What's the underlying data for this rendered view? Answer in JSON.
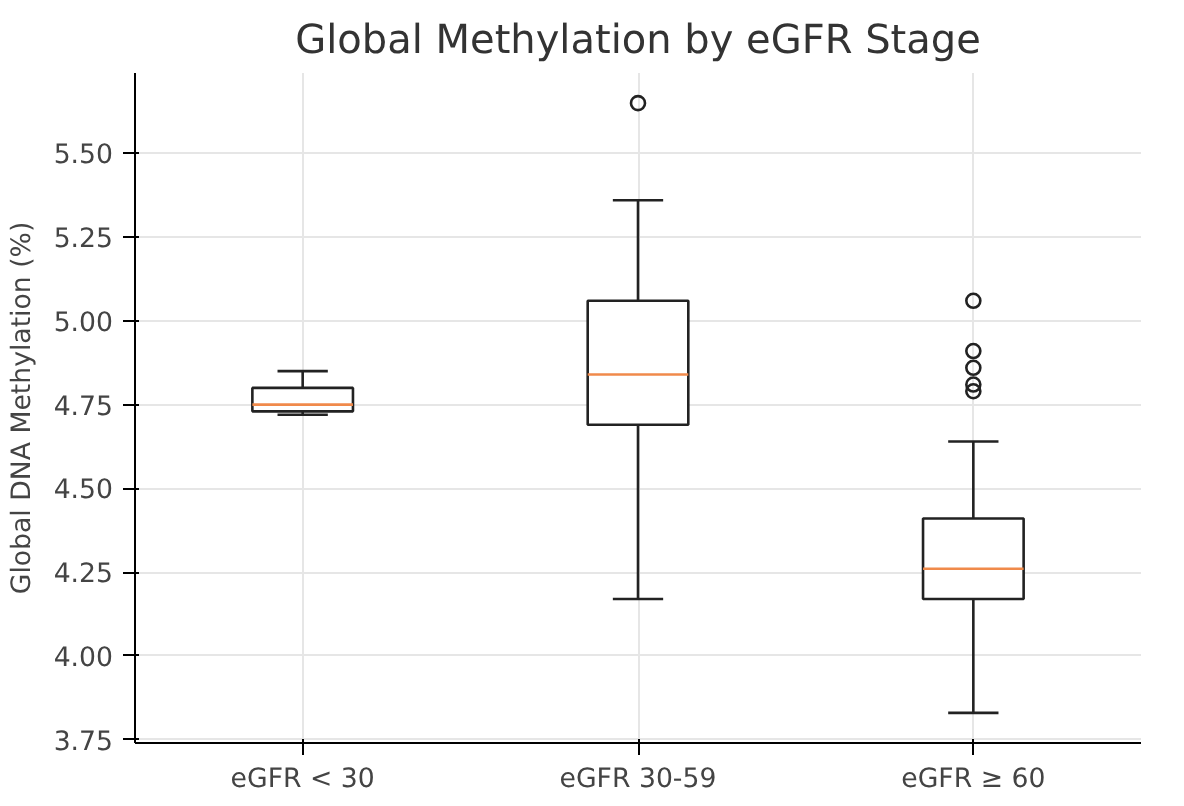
{
  "chart_data": {
    "type": "box",
    "title": "Global Methylation by eGFR Stage",
    "ylabel": "Global DNA Methylation (%)",
    "categories": [
      "eGFR < 30",
      "eGFR 30-59",
      "eGFR ≥ 60"
    ],
    "boxes": [
      {
        "low": 4.72,
        "q1": 4.73,
        "median": 4.75,
        "q3": 4.8,
        "high": 4.85
      },
      {
        "low": 4.17,
        "q1": 4.69,
        "median": 4.84,
        "q3": 5.06,
        "high": 5.36,
        "outliers": [
          5.65
        ]
      },
      {
        "low": 3.83,
        "q1": 4.17,
        "median": 4.26,
        "q3": 4.41,
        "high": 4.64,
        "outliers": [
          5.06,
          4.91,
          4.86,
          4.81,
          4.79
        ]
      }
    ],
    "color": "#222222",
    "marker": "circle",
    "ylim": [
      3.74,
      5.74
    ],
    "yticks": [
      {
        "value": 3.75,
        "label": "3.75"
      },
      {
        "value": 4.0,
        "label": "4.00"
      },
      {
        "value": 4.25,
        "label": "4.25"
      },
      {
        "value": 4.5,
        "label": "4.50"
      },
      {
        "value": 4.75,
        "label": "4.75"
      },
      {
        "value": 5.0,
        "label": "5.00"
      },
      {
        "value": 5.25,
        "label": "5.25"
      },
      {
        "value": 5.5,
        "label": "5.50"
      }
    ],
    "grid": true
  }
}
